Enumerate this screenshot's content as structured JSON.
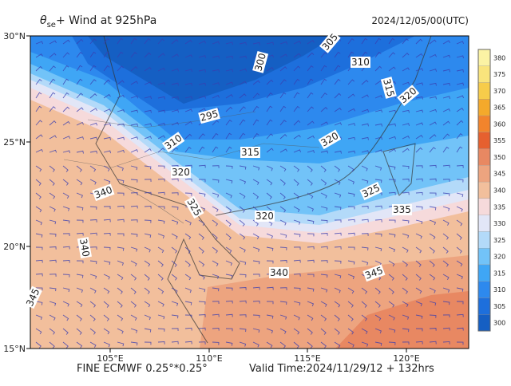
{
  "header": {
    "title_symbol": "θ",
    "title_subscript": "se",
    "title_text": "+ Wind at 925hPa",
    "date": "2024/12/05/00(UTC)"
  },
  "map": {
    "lat_labels": [
      "30°N",
      "25°N",
      "20°N",
      "15°N"
    ],
    "lon_labels": [
      "105°E",
      "110°E",
      "115°E",
      "120°E"
    ],
    "contour_labels": [
      "300",
      "305",
      "310",
      "315",
      "320",
      "295",
      "310",
      "315",
      "320",
      "320",
      "325",
      "325",
      "335",
      "320",
      "340",
      "340",
      "345",
      "340",
      "345"
    ]
  },
  "colorbar": [
    {
      "label": "380",
      "color": "#fbf3a4"
    },
    {
      "label": "375",
      "color": "#f9e47c"
    },
    {
      "label": "370",
      "color": "#f7cc4a"
    },
    {
      "label": "365",
      "color": "#f4a92b"
    },
    {
      "label": "360",
      "color": "#f2842c"
    },
    {
      "label": "355",
      "color": "#e6602f"
    },
    {
      "label": "350",
      "color": "#e88862"
    },
    {
      "label": "345",
      "color": "#eda47f"
    },
    {
      "label": "340",
      "color": "#f2bf9c"
    },
    {
      "label": "335",
      "color": "#f6dadb"
    },
    {
      "label": "330",
      "color": "#e2e6f7"
    },
    {
      "label": "325",
      "color": "#b3daf9"
    },
    {
      "label": "320",
      "color": "#72c3f8"
    },
    {
      "label": "315",
      "color": "#3fa6f5"
    },
    {
      "label": "310",
      "color": "#2d89ee"
    },
    {
      "label": "305",
      "color": "#1d6fdc"
    },
    {
      "label": "300",
      "color": "#155fc3"
    }
  ],
  "footer": {
    "left": "FINE ECMWF 0.25°*0.25°",
    "right": "Valid Time:2024/11/29/12 + 132hrs"
  }
}
